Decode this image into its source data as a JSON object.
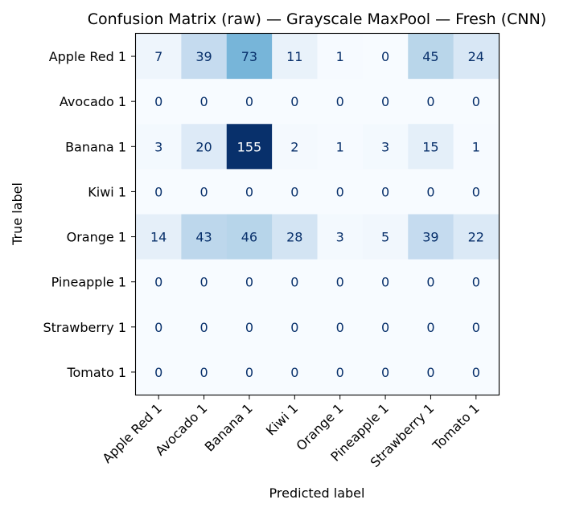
{
  "chart_data": {
    "type": "heatmap",
    "title": "Confusion Matrix (raw) — Grayscale MaxPool — Fresh (CNN)",
    "xlabel": "Predicted label",
    "ylabel": "True label",
    "x_categories": [
      "Apple Red 1",
      "Avocado 1",
      "Banana 1",
      "Kiwi 1",
      "Orange 1",
      "Pineapple 1",
      "Strawberry 1",
      "Tomato 1"
    ],
    "y_categories": [
      "Apple Red 1",
      "Avocado 1",
      "Banana 1",
      "Kiwi 1",
      "Orange 1",
      "Pineapple 1",
      "Strawberry 1",
      "Tomato 1"
    ],
    "matrix": [
      [
        7,
        39,
        73,
        11,
        1,
        0,
        45,
        24
      ],
      [
        0,
        0,
        0,
        0,
        0,
        0,
        0,
        0
      ],
      [
        3,
        20,
        155,
        2,
        1,
        3,
        15,
        1
      ],
      [
        0,
        0,
        0,
        0,
        0,
        0,
        0,
        0
      ],
      [
        14,
        43,
        46,
        28,
        3,
        5,
        39,
        22
      ],
      [
        0,
        0,
        0,
        0,
        0,
        0,
        0,
        0
      ],
      [
        0,
        0,
        0,
        0,
        0,
        0,
        0,
        0
      ],
      [
        0,
        0,
        0,
        0,
        0,
        0,
        0,
        0
      ]
    ],
    "colormap": "Blues",
    "value_range": [
      0,
      155
    ],
    "grid": false,
    "colorbar": false
  }
}
